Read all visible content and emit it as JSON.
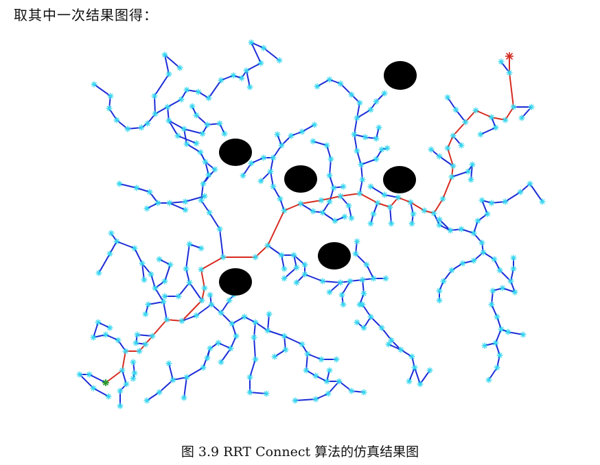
{
  "text": {
    "intro": "取其中一次结果图得：",
    "caption": "图 3.9 RRT Connect 算法的仿真结果图"
  },
  "colors": {
    "tree_edges": "#1a2bd6",
    "tree_nodes": "#33d6ee",
    "path": "#d62a1f",
    "obstacles": "#000000",
    "goal_marker": "#d62a1f",
    "start_marker": "#2e9a2e"
  },
  "icons": {
    "goal_marker": "red-star-goal-icon",
    "start_marker": "green-start-node-icon",
    "tree_node": "cyan-asterisk-node-icon",
    "obstacle": "black-circle-obstacle-icon"
  }
}
